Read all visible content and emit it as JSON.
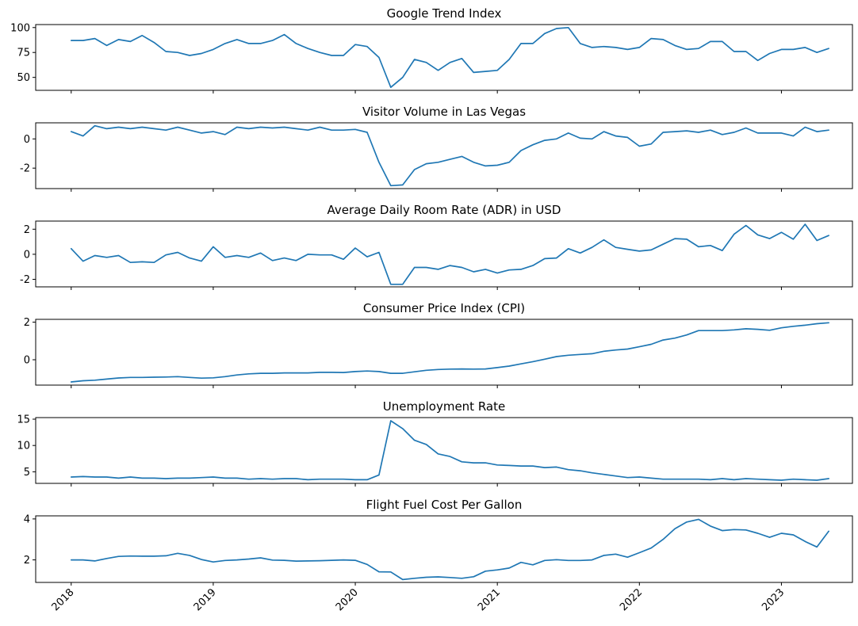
{
  "chart_data": [
    {
      "type": "line",
      "title": "Google Trend Index",
      "x": [
        "2018-01",
        "2018-02",
        "2018-03",
        "2018-04",
        "2018-05",
        "2018-06",
        "2018-07",
        "2018-08",
        "2018-09",
        "2018-10",
        "2018-11",
        "2018-12",
        "2019-01",
        "2019-02",
        "2019-03",
        "2019-04",
        "2019-05",
        "2019-06",
        "2019-07",
        "2019-08",
        "2019-09",
        "2019-10",
        "2019-11",
        "2019-12",
        "2020-01",
        "2020-02",
        "2020-03",
        "2020-04",
        "2020-05",
        "2020-06",
        "2020-07",
        "2020-08",
        "2020-09",
        "2020-10",
        "2020-11",
        "2020-12",
        "2021-01",
        "2021-02",
        "2021-03",
        "2021-04",
        "2021-05",
        "2021-06",
        "2021-07",
        "2021-08",
        "2021-09",
        "2021-10",
        "2021-11",
        "2021-12",
        "2022-01",
        "2022-02",
        "2022-03",
        "2022-04",
        "2022-05",
        "2022-06",
        "2022-07",
        "2022-08",
        "2022-09",
        "2022-10",
        "2022-11",
        "2022-12",
        "2023-01",
        "2023-02",
        "2023-03",
        "2023-04",
        "2023-05"
      ],
      "values": [
        87,
        87,
        89,
        82,
        88,
        86,
        92,
        85,
        76,
        75,
        72,
        74,
        78,
        84,
        88,
        84,
        84,
        87,
        93,
        84,
        79,
        75,
        72,
        72,
        83,
        81,
        70,
        40,
        50,
        68,
        65,
        57,
        65,
        69,
        55,
        56,
        57,
        68,
        84,
        84,
        94,
        99,
        100,
        84,
        80,
        81,
        80,
        78,
        80,
        89,
        88,
        82,
        78,
        79,
        86,
        86,
        76,
        76,
        67,
        74,
        78,
        78,
        80,
        75,
        79
      ],
      "yticks": [
        50,
        75,
        100
      ],
      "ylim": [
        37,
        103
      ],
      "color": "#1f77b4"
    },
    {
      "type": "line",
      "title": "Visitor Volume in Las Vegas",
      "x": [
        "2018-01",
        "2018-02",
        "2018-03",
        "2018-04",
        "2018-05",
        "2018-06",
        "2018-07",
        "2018-08",
        "2018-09",
        "2018-10",
        "2018-11",
        "2018-12",
        "2019-01",
        "2019-02",
        "2019-03",
        "2019-04",
        "2019-05",
        "2019-06",
        "2019-07",
        "2019-08",
        "2019-09",
        "2019-10",
        "2019-11",
        "2019-12",
        "2020-01",
        "2020-02",
        "2020-03",
        "2020-04",
        "2020-05",
        "2020-06",
        "2020-07",
        "2020-08",
        "2020-09",
        "2020-10",
        "2020-11",
        "2020-12",
        "2021-01",
        "2021-02",
        "2021-03",
        "2021-04",
        "2021-05",
        "2021-06",
        "2021-07",
        "2021-08",
        "2021-09",
        "2021-10",
        "2021-11",
        "2021-12",
        "2022-01",
        "2022-02",
        "2022-03",
        "2022-04",
        "2022-05",
        "2022-06",
        "2022-07",
        "2022-08",
        "2022-09",
        "2022-10",
        "2022-11",
        "2022-12",
        "2023-01",
        "2023-02",
        "2023-03",
        "2023-04",
        "2023-05"
      ],
      "values": [
        0.5,
        0.2,
        0.9,
        0.7,
        0.8,
        0.7,
        0.8,
        0.7,
        0.6,
        0.8,
        0.6,
        0.4,
        0.5,
        0.3,
        0.8,
        0.7,
        0.8,
        0.75,
        0.8,
        0.7,
        0.6,
        0.8,
        0.6,
        0.6,
        0.65,
        0.45,
        -1.6,
        -3.2,
        -3.15,
        -2.1,
        -1.7,
        -1.6,
        -1.4,
        -1.2,
        -1.6,
        -1.85,
        -1.8,
        -1.6,
        -0.8,
        -0.4,
        -0.1,
        0.0,
        0.4,
        0.05,
        0.0,
        0.5,
        0.2,
        0.1,
        -0.5,
        -0.35,
        0.45,
        0.5,
        0.55,
        0.45,
        0.6,
        0.3,
        0.45,
        0.75,
        0.4,
        0.4,
        0.4,
        0.2,
        0.8,
        0.5,
        0.6
      ],
      "yticks": [
        -2,
        0
      ],
      "ylim": [
        -3.4,
        1.1
      ],
      "color": "#1f77b4"
    },
    {
      "type": "line",
      "title": "Average Daily Room Rate (ADR) in USD",
      "x": [
        "2018-01",
        "2018-02",
        "2018-03",
        "2018-04",
        "2018-05",
        "2018-06",
        "2018-07",
        "2018-08",
        "2018-09",
        "2018-10",
        "2018-11",
        "2018-12",
        "2019-01",
        "2019-02",
        "2019-03",
        "2019-04",
        "2019-05",
        "2019-06",
        "2019-07",
        "2019-08",
        "2019-09",
        "2019-10",
        "2019-11",
        "2019-12",
        "2020-01",
        "2020-02",
        "2020-03",
        "2020-04",
        "2020-05",
        "2020-06",
        "2020-07",
        "2020-08",
        "2020-09",
        "2020-10",
        "2020-11",
        "2020-12",
        "2021-01",
        "2021-02",
        "2021-03",
        "2021-04",
        "2021-05",
        "2021-06",
        "2021-07",
        "2021-08",
        "2021-09",
        "2021-10",
        "2021-11",
        "2021-12",
        "2022-01",
        "2022-02",
        "2022-03",
        "2022-04",
        "2022-05",
        "2022-06",
        "2022-07",
        "2022-08",
        "2022-09",
        "2022-10",
        "2022-11",
        "2022-12",
        "2023-01",
        "2023-02",
        "2023-03",
        "2023-04",
        "2023-05"
      ],
      "values": [
        0.45,
        -0.55,
        -0.1,
        -0.25,
        -0.1,
        -0.65,
        -0.6,
        -0.65,
        -0.05,
        0.15,
        -0.3,
        -0.55,
        0.6,
        -0.25,
        -0.1,
        -0.25,
        0.1,
        -0.5,
        -0.3,
        -0.5,
        0.0,
        -0.05,
        -0.05,
        -0.4,
        0.5,
        -0.2,
        0.15,
        -2.4,
        -2.4,
        -1.05,
        -1.05,
        -1.2,
        -0.9,
        -1.05,
        -1.4,
        -1.2,
        -1.5,
        -1.25,
        -1.2,
        -0.9,
        -0.35,
        -0.3,
        0.45,
        0.1,
        0.55,
        1.15,
        0.55,
        0.4,
        0.25,
        0.35,
        0.8,
        1.25,
        1.2,
        0.6,
        0.7,
        0.3,
        1.6,
        2.3,
        1.55,
        1.25,
        1.75,
        1.2,
        2.4,
        1.1,
        1.5
      ],
      "yticks": [
        -2,
        0,
        2
      ],
      "ylim": [
        -2.6,
        2.65
      ],
      "color": "#1f77b4"
    },
    {
      "type": "line",
      "title": "Consumer Price Index (CPI)",
      "x": [
        "2018-01",
        "2018-02",
        "2018-03",
        "2018-04",
        "2018-05",
        "2018-06",
        "2018-07",
        "2018-08",
        "2018-09",
        "2018-10",
        "2018-11",
        "2018-12",
        "2019-01",
        "2019-02",
        "2019-03",
        "2019-04",
        "2019-05",
        "2019-06",
        "2019-07",
        "2019-08",
        "2019-09",
        "2019-10",
        "2019-11",
        "2019-12",
        "2020-01",
        "2020-02",
        "2020-03",
        "2020-04",
        "2020-05",
        "2020-06",
        "2020-07",
        "2020-08",
        "2020-09",
        "2020-10",
        "2020-11",
        "2020-12",
        "2021-01",
        "2021-02",
        "2021-03",
        "2021-04",
        "2021-05",
        "2021-06",
        "2021-07",
        "2021-08",
        "2021-09",
        "2021-10",
        "2021-11",
        "2021-12",
        "2022-01",
        "2022-02",
        "2022-03",
        "2022-04",
        "2022-05",
        "2022-06",
        "2022-07",
        "2022-08",
        "2022-09",
        "2022-10",
        "2022-11",
        "2022-12",
        "2023-01",
        "2023-02",
        "2023-03",
        "2023-04",
        "2023-05"
      ],
      "values": [
        -1.18,
        -1.12,
        -1.09,
        -1.03,
        -0.97,
        -0.94,
        -0.94,
        -0.93,
        -0.92,
        -0.9,
        -0.94,
        -0.98,
        -0.96,
        -0.9,
        -0.81,
        -0.75,
        -0.72,
        -0.72,
        -0.7,
        -0.7,
        -0.7,
        -0.67,
        -0.67,
        -0.68,
        -0.63,
        -0.6,
        -0.63,
        -0.72,
        -0.72,
        -0.64,
        -0.56,
        -0.52,
        -0.5,
        -0.49,
        -0.5,
        -0.49,
        -0.42,
        -0.34,
        -0.22,
        -0.1,
        0.03,
        0.17,
        0.24,
        0.28,
        0.32,
        0.45,
        0.52,
        0.57,
        0.69,
        0.82,
        1.05,
        1.15,
        1.32,
        1.55,
        1.55,
        1.55,
        1.59,
        1.65,
        1.62,
        1.57,
        1.7,
        1.78,
        1.84,
        1.92,
        1.97
      ],
      "yticks": [
        0,
        2
      ],
      "ylim": [
        -1.35,
        2.15
      ],
      "color": "#1f77b4"
    },
    {
      "type": "line",
      "title": "Unemployment Rate",
      "x": [
        "2018-01",
        "2018-02",
        "2018-03",
        "2018-04",
        "2018-05",
        "2018-06",
        "2018-07",
        "2018-08",
        "2018-09",
        "2018-10",
        "2018-11",
        "2018-12",
        "2019-01",
        "2019-02",
        "2019-03",
        "2019-04",
        "2019-05",
        "2019-06",
        "2019-07",
        "2019-08",
        "2019-09",
        "2019-10",
        "2019-11",
        "2019-12",
        "2020-01",
        "2020-02",
        "2020-03",
        "2020-04",
        "2020-05",
        "2020-06",
        "2020-07",
        "2020-08",
        "2020-09",
        "2020-10",
        "2020-11",
        "2020-12",
        "2021-01",
        "2021-02",
        "2021-03",
        "2021-04",
        "2021-05",
        "2021-06",
        "2021-07",
        "2021-08",
        "2021-09",
        "2021-10",
        "2021-11",
        "2021-12",
        "2022-01",
        "2022-02",
        "2022-03",
        "2022-04",
        "2022-05",
        "2022-06",
        "2022-07",
        "2022-08",
        "2022-09",
        "2022-10",
        "2022-11",
        "2022-12",
        "2023-01",
        "2023-02",
        "2023-03",
        "2023-04",
        "2023-05"
      ],
      "values": [
        4.0,
        4.1,
        4.0,
        4.0,
        3.8,
        4.0,
        3.8,
        3.8,
        3.7,
        3.8,
        3.8,
        3.9,
        4.0,
        3.8,
        3.8,
        3.6,
        3.7,
        3.6,
        3.7,
        3.7,
        3.5,
        3.6,
        3.6,
        3.6,
        3.5,
        3.5,
        4.4,
        14.7,
        13.2,
        11.0,
        10.2,
        8.4,
        7.9,
        6.9,
        6.7,
        6.7,
        6.3,
        6.2,
        6.1,
        6.1,
        5.8,
        5.9,
        5.4,
        5.2,
        4.8,
        4.5,
        4.2,
        3.9,
        4.0,
        3.8,
        3.6,
        3.6,
        3.6,
        3.6,
        3.5,
        3.7,
        3.5,
        3.7,
        3.6,
        3.5,
        3.4,
        3.6,
        3.5,
        3.4,
        3.7
      ],
      "yticks": [
        5,
        10,
        15
      ],
      "ylim": [
        2.8,
        15.3
      ],
      "color": "#1f77b4"
    },
    {
      "type": "line",
      "title": "Flight Fuel Cost Per Gallon",
      "x": [
        "2018-01",
        "2018-02",
        "2018-03",
        "2018-04",
        "2018-05",
        "2018-06",
        "2018-07",
        "2018-08",
        "2018-09",
        "2018-10",
        "2018-11",
        "2018-12",
        "2019-01",
        "2019-02",
        "2019-03",
        "2019-04",
        "2019-05",
        "2019-06",
        "2019-07",
        "2019-08",
        "2019-09",
        "2019-10",
        "2019-11",
        "2019-12",
        "2020-01",
        "2020-02",
        "2020-03",
        "2020-04",
        "2020-05",
        "2020-06",
        "2020-07",
        "2020-08",
        "2020-09",
        "2020-10",
        "2020-11",
        "2020-12",
        "2021-01",
        "2021-02",
        "2021-03",
        "2021-04",
        "2021-05",
        "2021-06",
        "2021-07",
        "2021-08",
        "2021-09",
        "2021-10",
        "2021-11",
        "2021-12",
        "2022-01",
        "2022-02",
        "2022-03",
        "2022-04",
        "2022-05",
        "2022-06",
        "2022-07",
        "2022-08",
        "2022-09",
        "2022-10",
        "2022-11",
        "2022-12",
        "2023-01",
        "2023-02",
        "2023-03",
        "2023-04",
        "2023-05"
      ],
      "values": [
        2.0,
        2.0,
        1.95,
        2.07,
        2.17,
        2.19,
        2.18,
        2.18,
        2.2,
        2.32,
        2.22,
        2.02,
        1.9,
        1.97,
        2.0,
        2.04,
        2.1,
        1.99,
        1.98,
        1.94,
        1.95,
        1.96,
        1.98,
        2.0,
        1.98,
        1.78,
        1.42,
        1.41,
        1.04,
        1.1,
        1.15,
        1.17,
        1.14,
        1.1,
        1.18,
        1.45,
        1.51,
        1.6,
        1.88,
        1.76,
        1.97,
        2.01,
        1.97,
        1.97,
        2.0,
        2.22,
        2.28,
        2.13,
        2.35,
        2.58,
        3.0,
        3.52,
        3.85,
        3.98,
        3.65,
        3.43,
        3.48,
        3.46,
        3.3,
        3.1,
        3.3,
        3.22,
        2.9,
        2.63,
        3.4
      ],
      "yticks": [
        2,
        4
      ],
      "ylim": [
        0.9,
        4.15
      ],
      "color": "#1f77b4"
    }
  ],
  "shared_x_axis": {
    "tick_labels": [
      "2018",
      "2019",
      "2020",
      "2021",
      "2022",
      "2023"
    ],
    "tick_dates": [
      "2018-01",
      "2019-01",
      "2020-01",
      "2021-01",
      "2022-01",
      "2023-01"
    ],
    "xlim": [
      "2017-10",
      "2023-07"
    ]
  }
}
